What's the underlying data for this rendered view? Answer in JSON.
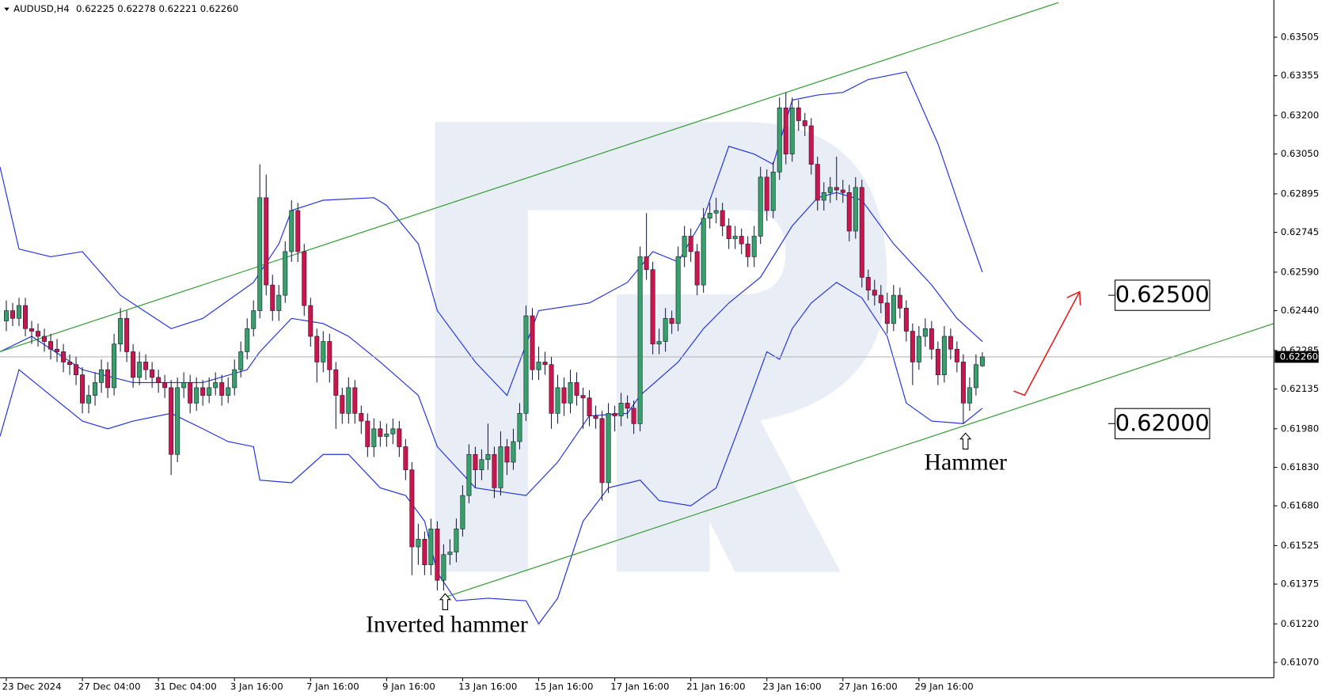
{
  "chart_data": {
    "type": "candlestick",
    "symbol": "AUDUSD,H4",
    "ohlc": "0.62225 0.62278 0.62221 0.62260",
    "up_color": "#3a9f6b",
    "down_color": "#c8174c",
    "wick_color": "#1b1f3a",
    "band_color": "#2233dd",
    "trend_color": "#2e9a2e",
    "grid": false,
    "xlim": [
      -1,
      200
    ],
    "ylim": [
      0.6101,
      0.6365
    ],
    "yticks": [
      0.63505,
      0.63355,
      {
        "value": 0.632,
        "label": "0.63200"
      },
      {
        "value": 0.6305,
        "label": "0.63050"
      },
      0.62895,
      0.62745,
      {
        "value": 0.6259,
        "label": "0.62590"
      },
      {
        "value": 0.6244,
        "label": "0.62440"
      },
      0.62285,
      0.62135,
      {
        "value": 0.6198,
        "label": "0.61980"
      },
      {
        "value": 0.6183,
        "label": "0.61830"
      },
      {
        "value": 0.6168,
        "label": "0.61680"
      },
      0.61525,
      0.61375,
      {
        "value": 0.6122,
        "label": "0.61220"
      },
      {
        "value": 0.6107,
        "label": "0.61070"
      }
    ],
    "last_price": {
      "value": 0.6226,
      "label": "0.62260"
    },
    "levels": [
      {
        "value": 0.625,
        "label": "0.62500"
      },
      {
        "value": 0.62,
        "label": "0.62000"
      }
    ],
    "annotations": [
      "Inverted hammer",
      "Hammer"
    ],
    "categories": [
      "23 Dec 2024",
      null,
      null,
      null,
      null,
      null,
      null,
      null,
      null,
      null,
      null,
      null,
      "27 Dec 04:00",
      null,
      null,
      null,
      null,
      null,
      null,
      null,
      null,
      null,
      null,
      null,
      "31 Dec 04:00",
      null,
      null,
      null,
      null,
      null,
      null,
      null,
      null,
      null,
      null,
      null,
      "3 Jan 16:00",
      null,
      null,
      null,
      null,
      null,
      null,
      null,
      null,
      null,
      null,
      null,
      "7 Jan 16:00",
      null,
      null,
      null,
      null,
      null,
      null,
      null,
      null,
      null,
      null,
      null,
      "9 Jan 16:00",
      null,
      null,
      null,
      null,
      null,
      null,
      null,
      null,
      null,
      null,
      null,
      "13 Jan 16:00",
      null,
      null,
      null,
      null,
      null,
      null,
      null,
      null,
      null,
      null,
      null,
      "15 Jan 16:00",
      null,
      null,
      null,
      null,
      null,
      null,
      null,
      null,
      null,
      null,
      null,
      "17 Jan 16:00",
      null,
      null,
      null,
      null,
      null,
      null,
      null,
      null,
      null,
      null,
      null,
      "21 Jan 16:00",
      null,
      null,
      null,
      null,
      null,
      null,
      null,
      null,
      null,
      null,
      null,
      "23 Jan 16:00",
      null,
      null,
      null,
      null,
      null,
      null,
      null,
      null,
      null,
      null,
      null,
      "27 Jan 16:00",
      null,
      null,
      null,
      null,
      null,
      null,
      null,
      null,
      null,
      null,
      null,
      "29 Jan 16:00",
      null,
      null,
      null,
      null,
      null,
      null,
      null,
      null,
      null,
      null
    ],
    "open": [
      0.624,
      0.6244,
      0.6241,
      0.6246,
      0.6237,
      0.6236,
      0.6234,
      0.6232,
      0.6229,
      0.6228,
      0.6224,
      0.6223,
      0.6219,
      0.6208,
      0.6211,
      0.6216,
      0.6221,
      0.6214,
      0.6231,
      0.6241,
      0.6228,
      0.6218,
      0.6224,
      0.6221,
      0.6218,
      0.6216,
      0.6214,
      0.6188,
      0.6214,
      0.6216,
      0.6208,
      0.6214,
      0.6211,
      0.6214,
      0.6216,
      0.6211,
      0.6214,
      0.6221,
      0.6228,
      0.6237,
      0.6244,
      0.6288,
      0.6254,
      0.6244,
      0.625,
      0.6267,
      0.6283,
      0.6267,
      0.6246,
      0.6234,
      0.6224,
      0.6232,
      0.6221,
      0.6211,
      0.6204,
      0.6214,
      0.6204,
      0.6201,
      0.6191,
      0.6198,
      0.6195,
      0.6196,
      0.6198,
      0.6191,
      0.6182,
      0.6152,
      0.6155,
      0.6145,
      0.6159,
      0.6139,
      0.6149,
      0.615,
      0.6159,
      0.6172,
      0.6188,
      0.6182,
      0.6186,
      0.6188,
      0.6175,
      0.6191,
      0.6185,
      0.6193,
      0.6204,
      0.6242,
      0.6221,
      0.6224,
      0.6223,
      0.6204,
      0.6214,
      0.6208,
      0.6216,
      0.6211,
      0.621,
      0.6203,
      0.6202,
      0.6177,
      0.6204,
      0.6203,
      0.6208,
      0.6206,
      0.62,
      0.6265,
      0.626,
      0.6231,
      0.6232,
      0.6241,
      0.6239,
      0.6265,
      0.6273,
      0.6267,
      0.6254,
      0.628,
      0.6282,
      0.6283,
      0.6277,
      0.6272,
      0.6273,
      0.627,
      0.6265,
      0.6273,
      0.6296,
      0.6283,
      0.6298,
      0.6323,
      0.6305,
      0.6323,
      0.6318,
      0.6316,
      0.6301,
      0.6287,
      0.629,
      0.6292,
      0.6291,
      0.629,
      0.6275,
      0.6292,
      0.6257,
      0.6252,
      0.625,
      0.6247,
      0.6239,
      0.625,
      0.6245,
      0.6236,
      0.6224,
      0.6234,
      0.6237,
      0.6229,
      0.6219,
      0.6234,
      0.6229,
      0.6224,
      0.6208,
      0.6214,
      0.62225
    ],
    "high": [
      0.6248,
      0.6247,
      0.6249,
      0.6249,
      0.624,
      0.6239,
      0.6237,
      0.6235,
      0.6233,
      0.6231,
      0.6227,
      0.6226,
      0.6222,
      0.6215,
      0.622,
      0.6225,
      0.6224,
      0.6235,
      0.6245,
      0.6244,
      0.6231,
      0.6228,
      0.6227,
      0.6224,
      0.6221,
      0.6219,
      0.6217,
      0.6218,
      0.622,
      0.6219,
      0.6218,
      0.6217,
      0.6218,
      0.622,
      0.6219,
      0.6218,
      0.6225,
      0.6232,
      0.6241,
      0.6248,
      0.6301,
      0.6297,
      0.6258,
      0.6254,
      0.6271,
      0.6287,
      0.6286,
      0.627,
      0.6249,
      0.6237,
      0.6236,
      0.6235,
      0.6224,
      0.6214,
      0.6218,
      0.6217,
      0.6207,
      0.6204,
      0.6202,
      0.6201,
      0.62,
      0.6202,
      0.6201,
      0.6194,
      0.6185,
      0.6161,
      0.6158,
      0.6163,
      0.6162,
      0.6153,
      0.6155,
      0.6163,
      0.6176,
      0.6192,
      0.6191,
      0.619,
      0.62,
      0.6191,
      0.6197,
      0.6194,
      0.6198,
      0.6208,
      0.6246,
      0.6245,
      0.623,
      0.6228,
      0.6226,
      0.6219,
      0.6218,
      0.6221,
      0.622,
      0.6214,
      0.6213,
      0.6207,
      0.6205,
      0.6208,
      0.6207,
      0.6212,
      0.6211,
      0.6209,
      0.6269,
      0.6282,
      0.6263,
      0.6237,
      0.6245,
      0.6244,
      0.6269,
      0.6277,
      0.6276,
      0.627,
      0.6284,
      0.6286,
      0.6288,
      0.6286,
      0.628,
      0.6277,
      0.6276,
      0.6273,
      0.6277,
      0.63,
      0.6299,
      0.6302,
      0.6327,
      0.6329,
      0.6327,
      0.6326,
      0.6321,
      0.6319,
      0.6304,
      0.6294,
      0.6296,
      0.6304,
      0.6295,
      0.6293,
      0.6296,
      0.6295,
      0.626,
      0.6256,
      0.6254,
      0.6251,
      0.6254,
      0.6253,
      0.6248,
      0.6239,
      0.6238,
      0.6241,
      0.624,
      0.6232,
      0.6238,
      0.6237,
      0.6232,
      0.6227,
      0.6218,
      0.6227,
      0.62278
    ],
    "low": [
      0.6236,
      0.6238,
      0.6238,
      0.6234,
      0.6231,
      0.623,
      0.6228,
      0.6225,
      0.6224,
      0.622,
      0.6219,
      0.6215,
      0.6204,
      0.6204,
      0.6207,
      0.6212,
      0.621,
      0.6211,
      0.6228,
      0.6224,
      0.6214,
      0.6215,
      0.6217,
      0.6214,
      0.6212,
      0.621,
      0.618,
      0.6185,
      0.621,
      0.6204,
      0.6205,
      0.6207,
      0.6208,
      0.6211,
      0.6207,
      0.6208,
      0.6211,
      0.6218,
      0.6225,
      0.6234,
      0.6241,
      0.625,
      0.624,
      0.624,
      0.6247,
      0.6263,
      0.6263,
      0.6242,
      0.623,
      0.6216,
      0.622,
      0.6216,
      0.6198,
      0.62,
      0.62,
      0.62,
      0.6196,
      0.6187,
      0.6187,
      0.6191,
      0.6191,
      0.6192,
      0.6187,
      0.6178,
      0.6141,
      0.6145,
      0.6141,
      0.6141,
      0.6135,
      0.6135,
      0.6145,
      0.6146,
      0.6156,
      0.6169,
      0.6175,
      0.6178,
      0.6182,
      0.6171,
      0.6172,
      0.618,
      0.6182,
      0.619,
      0.6201,
      0.6217,
      0.6217,
      0.6219,
      0.6198,
      0.62,
      0.6203,
      0.6204,
      0.6207,
      0.6198,
      0.6199,
      0.6198,
      0.617,
      0.6173,
      0.6197,
      0.6199,
      0.6202,
      0.6196,
      0.6197,
      0.6256,
      0.6227,
      0.6227,
      0.6228,
      0.6235,
      0.6236,
      0.6261,
      0.6263,
      0.625,
      0.6251,
      0.6276,
      0.6278,
      0.6273,
      0.6268,
      0.6268,
      0.6266,
      0.6261,
      0.6261,
      0.627,
      0.6279,
      0.628,
      0.6295,
      0.6301,
      0.6302,
      0.6314,
      0.6312,
      0.6297,
      0.6283,
      0.6283,
      0.6286,
      0.6287,
      0.6286,
      0.6271,
      0.6272,
      0.6253,
      0.6248,
      0.6246,
      0.6243,
      0.6235,
      0.6236,
      0.6241,
      0.6232,
      0.6215,
      0.6221,
      0.623,
      0.6225,
      0.6215,
      0.6216,
      0.6225,
      0.622,
      0.62,
      0.6205,
      0.6211,
      0.62221
    ],
    "close": [
      0.6244,
      0.6241,
      0.6246,
      0.6237,
      0.6236,
      0.6234,
      0.6232,
      0.6229,
      0.6228,
      0.6224,
      0.6223,
      0.6219,
      0.6208,
      0.6211,
      0.6216,
      0.6221,
      0.6214,
      0.6231,
      0.6241,
      0.6228,
      0.6218,
      0.6224,
      0.6221,
      0.6218,
      0.6216,
      0.6214,
      0.6188,
      0.6214,
      0.6216,
      0.6208,
      0.6214,
      0.6211,
      0.6214,
      0.6216,
      0.6211,
      0.6214,
      0.6221,
      0.6228,
      0.6237,
      0.6244,
      0.6288,
      0.6254,
      0.6244,
      0.625,
      0.6267,
      0.6283,
      0.6267,
      0.6246,
      0.6234,
      0.6224,
      0.6232,
      0.6221,
      0.6211,
      0.6204,
      0.6214,
      0.6204,
      0.6201,
      0.6191,
      0.6198,
      0.6195,
      0.6196,
      0.6198,
      0.6191,
      0.6182,
      0.6152,
      0.6155,
      0.6145,
      0.6159,
      0.6139,
      0.6149,
      0.615,
      0.6159,
      0.6172,
      0.6188,
      0.6182,
      0.6186,
      0.6188,
      0.6175,
      0.6191,
      0.6185,
      0.6193,
      0.6204,
      0.6242,
      0.6221,
      0.6224,
      0.6223,
      0.6204,
      0.6214,
      0.6208,
      0.6216,
      0.6211,
      0.621,
      0.6203,
      0.6202,
      0.6177,
      0.6204,
      0.6203,
      0.6208,
      0.6206,
      0.62,
      0.6265,
      0.626,
      0.6231,
      0.6232,
      0.6241,
      0.6239,
      0.6265,
      0.6273,
      0.6267,
      0.6254,
      0.628,
      0.6282,
      0.6283,
      0.6277,
      0.6272,
      0.6273,
      0.627,
      0.6265,
      0.6273,
      0.6296,
      0.6283,
      0.6298,
      0.6323,
      0.6305,
      0.6323,
      0.6318,
      0.6316,
      0.6301,
      0.6287,
      0.629,
      0.6292,
      0.6291,
      0.629,
      0.6275,
      0.6292,
      0.6257,
      0.6252,
      0.625,
      0.6247,
      0.6239,
      0.625,
      0.6245,
      0.6236,
      0.6224,
      0.6234,
      0.6237,
      0.6229,
      0.6219,
      0.6234,
      0.6229,
      0.6224,
      0.6208,
      0.6214,
      0.6223,
      0.6226
    ],
    "bands": [
      {
        "x": [
          -1,
          2,
          7,
          12,
          18,
          26,
          31,
          39,
          43,
          45,
          50,
          58,
          60,
          65,
          68,
          74,
          79,
          84,
          92,
          98,
          102,
          106,
          110,
          114,
          118,
          121,
          124,
          128,
          132,
          136,
          142,
          147,
          151,
          154
        ],
        "values": [
          0.63,
          0.6268,
          0.6265,
          0.6267,
          0.625,
          0.6237,
          0.6241,
          0.6255,
          0.627,
          0.6283,
          0.6287,
          0.6288,
          0.6285,
          0.627,
          0.6244,
          0.6224,
          0.6211,
          0.6244,
          0.6247,
          0.6255,
          0.6267,
          0.6263,
          0.628,
          0.6308,
          0.6305,
          0.6301,
          0.6326,
          0.6328,
          0.6329,
          0.6334,
          0.6337,
          0.6309,
          0.628,
          0.6259
        ]
      },
      {
        "x": [
          -1,
          4,
          12,
          20,
          31,
          38,
          40,
          45,
          50,
          54,
          59,
          65,
          68,
          74,
          82,
          87,
          92,
          98,
          100,
          106,
          110,
          114,
          119,
          124,
          128,
          131,
          135,
          140,
          146,
          150,
          154
        ],
        "values": [
          0.6228,
          0.6234,
          0.6221,
          0.6216,
          0.6216,
          0.6221,
          0.6228,
          0.6241,
          0.6239,
          0.6234,
          0.6224,
          0.6211,
          0.6191,
          0.6175,
          0.6172,
          0.6185,
          0.6203,
          0.6204,
          0.6211,
          0.6224,
          0.6237,
          0.6247,
          0.6257,
          0.6277,
          0.6288,
          0.629,
          0.6287,
          0.627,
          0.6254,
          0.6241,
          0.6232
        ]
      },
      {
        "x": [
          -1,
          2,
          7,
          12,
          16,
          20,
          26,
          31,
          35,
          39,
          40,
          45,
          50,
          54,
          59,
          63,
          66,
          68,
          71,
          76,
          82,
          84,
          87,
          91,
          95,
          100,
          103,
          108,
          112,
          116,
          120,
          122,
          124,
          127,
          131,
          135,
          139,
          142,
          146,
          151,
          154
        ],
        "values": [
          0.6195,
          0.6221,
          0.6211,
          0.6201,
          0.6198,
          0.6201,
          0.6204,
          0.6198,
          0.6193,
          0.6191,
          0.6178,
          0.6177,
          0.6188,
          0.6188,
          0.6175,
          0.6172,
          0.6162,
          0.6142,
          0.6131,
          0.6132,
          0.6131,
          0.6122,
          0.6132,
          0.6162,
          0.6175,
          0.6178,
          0.617,
          0.6168,
          0.6175,
          0.6201,
          0.6228,
          0.6225,
          0.6237,
          0.6247,
          0.6255,
          0.6249,
          0.6234,
          0.6208,
          0.6201,
          0.62,
          0.6206
        ]
      }
    ],
    "trendlines": [
      {
        "x": [
          -1,
          166
        ],
        "values": [
          0.6228,
          0.6364
        ]
      },
      {
        "x": [
          68.7,
          200
        ],
        "values": [
          0.6132,
          0.6239
        ]
      }
    ]
  }
}
